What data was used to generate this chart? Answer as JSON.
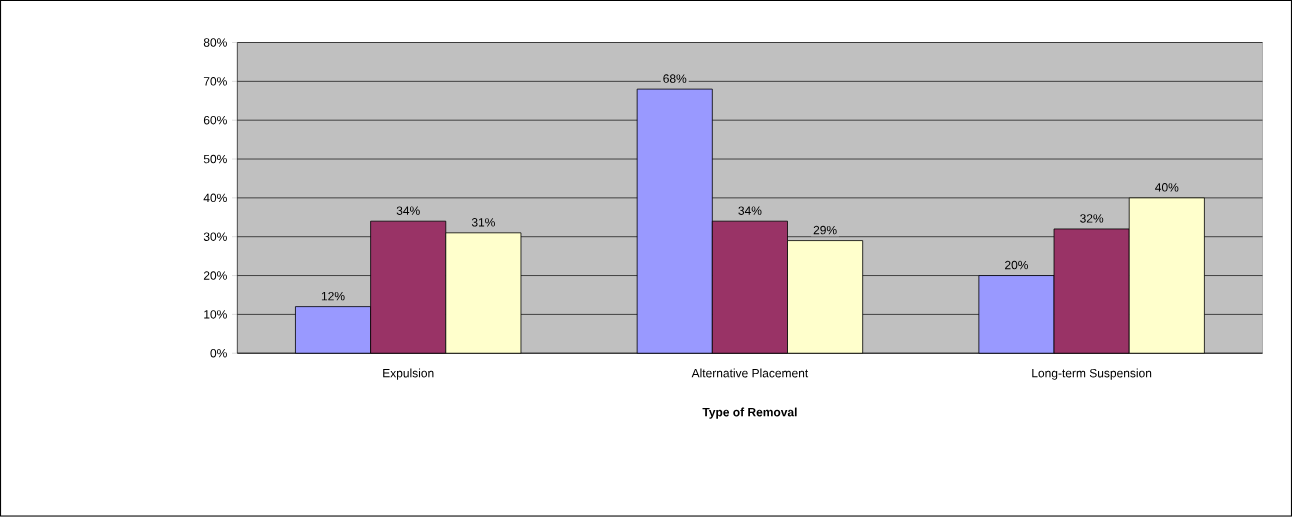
{
  "chart_data": {
    "type": "bar",
    "xlabel": "Type of Removal",
    "categories": [
      "Expulsion",
      "Alternative Placement",
      "Long-term Suspension"
    ],
    "series": [
      {
        "color": "#9999ff",
        "values": [
          12,
          68,
          20
        ],
        "value_labels": [
          "12%",
          "68%",
          "20%"
        ]
      },
      {
        "color": "#993366",
        "values": [
          34,
          34,
          32
        ],
        "value_labels": [
          "34%",
          "34%",
          "32%"
        ]
      },
      {
        "color": "#ffffcc",
        "values": [
          31,
          29,
          40
        ],
        "value_labels": [
          "31%",
          "29%",
          "40%"
        ]
      }
    ],
    "ylim": [
      0,
      80
    ],
    "yticks": [
      {
        "value": 0,
        "label": "0%"
      },
      {
        "value": 10,
        "label": "10%"
      },
      {
        "value": 20,
        "label": "20%"
      },
      {
        "value": 30,
        "label": "30%"
      },
      {
        "value": 40,
        "label": "40%"
      },
      {
        "value": 50,
        "label": "50%"
      },
      {
        "value": 60,
        "label": "60%"
      },
      {
        "value": 70,
        "label": "70%"
      },
      {
        "value": 80,
        "label": "80%"
      }
    ],
    "grid": "y"
  }
}
